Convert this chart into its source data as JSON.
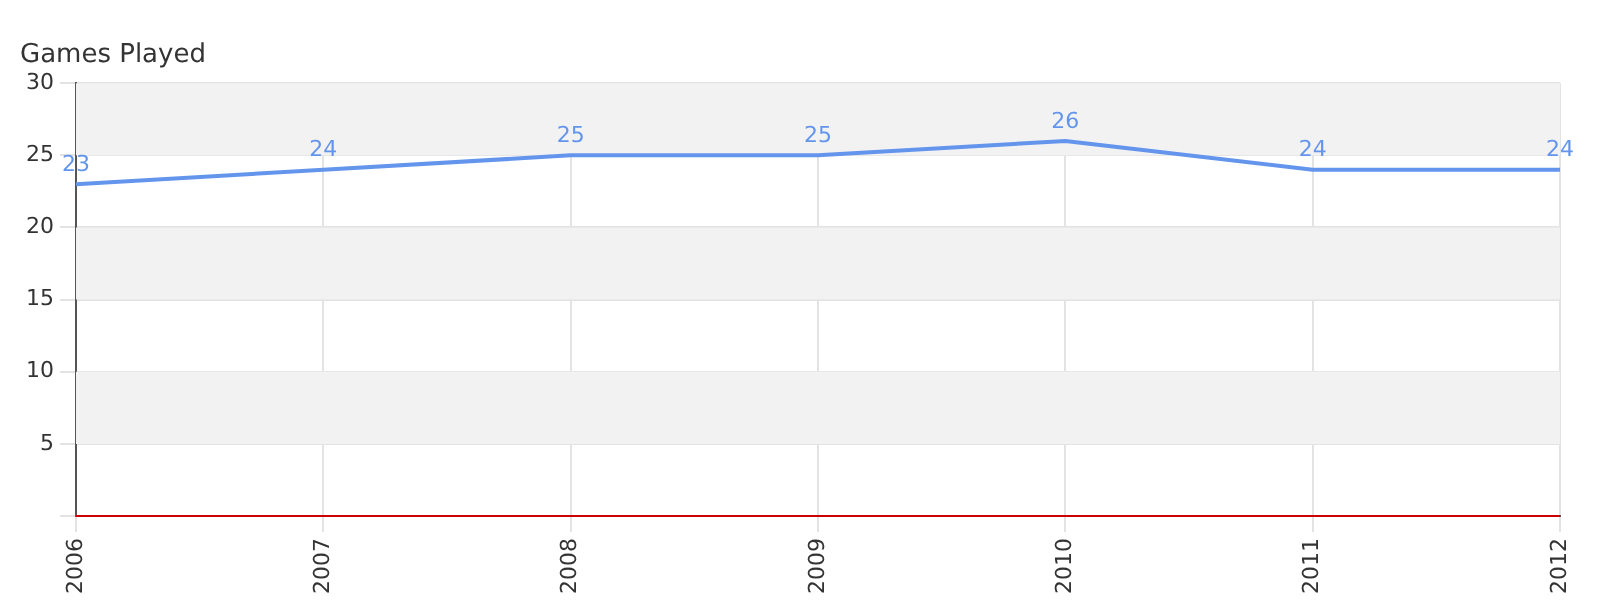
{
  "chart_data": {
    "type": "line",
    "title": "Games Played",
    "x": [
      "2006",
      "2007",
      "2008",
      "2009",
      "2010",
      "2011",
      "2012"
    ],
    "series": [
      {
        "color": "#6495ed",
        "values": [
          23,
          24,
          25,
          25,
          26,
          24,
          24
        ]
      }
    ],
    "xlim": [
      "2006",
      "2012"
    ],
    "xticks": [
      "2006",
      "2007",
      "2008",
      "2009",
      "2010",
      "2011",
      "2012"
    ],
    "ylim": [
      0,
      30
    ],
    "yticks": [
      {
        "value": 0,
        "label": null
      },
      5,
      10,
      15,
      20,
      25,
      30
    ],
    "bands": [
      {
        "axis": "y",
        "from": 25,
        "to": 30,
        "color": "#f2f2f2"
      },
      {
        "axis": "y",
        "from": 15,
        "to": 20,
        "color": "#f2f2f2"
      },
      {
        "axis": "y",
        "from": 5,
        "to": 10,
        "color": "#f2f2f2"
      }
    ],
    "ref_lines": [
      {
        "axis": "y",
        "value": 0,
        "color": "#cc0000"
      }
    ],
    "grid": true,
    "data_labels": true,
    "legend": false,
    "marker": "none",
    "line_style": "solid"
  }
}
